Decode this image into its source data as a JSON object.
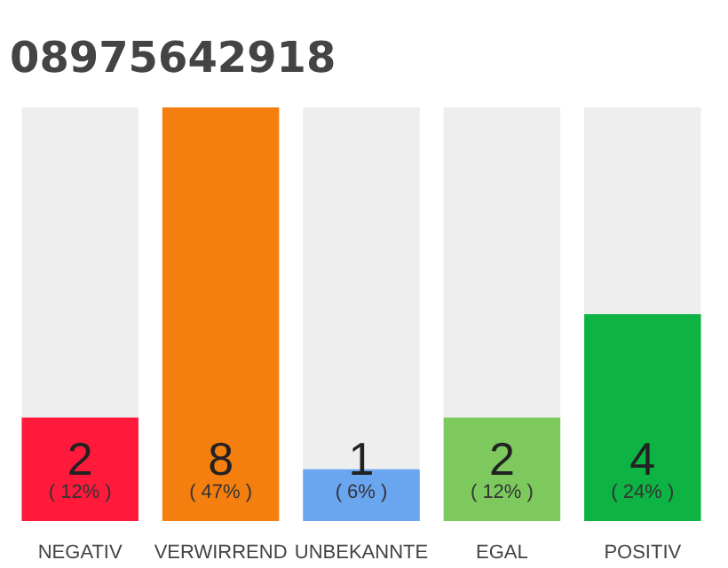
{
  "chart_data": {
    "type": "bar",
    "title": "08975642918",
    "categories": [
      "NEGATIV",
      "VERWIRREND",
      "UNBEKANNTE",
      "EGAL",
      "POSITIV"
    ],
    "values": [
      2,
      8,
      1,
      2,
      4
    ],
    "colors": [
      "#ff1a3c",
      "#f47f0f",
      "#6aa5f0",
      "#7dc95e",
      "#0db343"
    ],
    "data_labels": true,
    "tick_labels": "x",
    "annotations": [
      "( 12% )",
      "( 47% )",
      "( 6% )",
      "( 12% )",
      "( 24% )"
    ]
  }
}
